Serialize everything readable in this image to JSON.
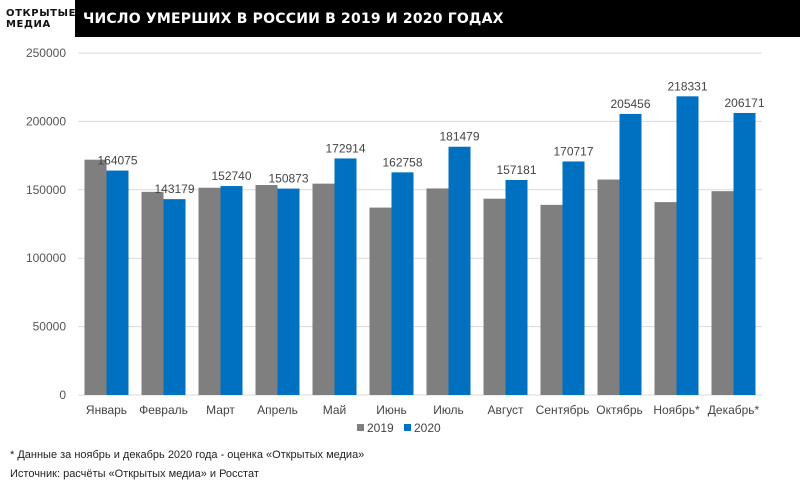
{
  "header": {
    "logo_line1": "ОТКРЫТЫЕ",
    "logo_line2": "МЕДИА",
    "title": "ЧИСЛО УМЕРШИХ В РОССИИ В 2019 И 2020 ГОДАХ"
  },
  "colors": {
    "s2019": "#7f7f7f",
    "s2020": "#0070c0",
    "grid": "#d9d9d9"
  },
  "chart_data": {
    "type": "bar",
    "title": "ЧИСЛО УМЕРШИХ В РОССИИ В 2019 И 2020 ГОДАХ",
    "categories": [
      "Январь",
      "Февраль",
      "Март",
      "Апрель",
      "Май",
      "Июнь",
      "Июль",
      "Август",
      "Сентябрь",
      "Октябрь",
      "Ноябрь*",
      "Декабрь*"
    ],
    "series": [
      {
        "name": "2019",
        "values": [
          172000,
          148500,
          151500,
          153500,
          154500,
          137000,
          151000,
          143500,
          139000,
          157500,
          141000,
          149000
        ]
      },
      {
        "name": "2020",
        "values": [
          164075,
          143179,
          152740,
          150873,
          172914,
          162758,
          181479,
          157181,
          170717,
          205456,
          218331,
          206171
        ],
        "labels": [
          "164075",
          "143179",
          "152740",
          "150873",
          "172914",
          "162758",
          "181479",
          "157181",
          "170717",
          "205456",
          "218331",
          "206171"
        ]
      }
    ],
    "ylim": [
      0,
      250000
    ],
    "yticks": [
      "0",
      "50000",
      "100000",
      "150000",
      "200000",
      "250000"
    ],
    "ytick_values": [
      0,
      50000,
      100000,
      150000,
      200000,
      250000
    ],
    "xlabel": "",
    "ylabel": "",
    "legend": [
      "2019",
      "2020"
    ]
  },
  "notes": {
    "footnote": "* Данные за ноябрь и декабрь 2020 года - оценка «Открытых медиа»",
    "source": "Источник: расчёты «Открытых медиа» и Росстат"
  }
}
